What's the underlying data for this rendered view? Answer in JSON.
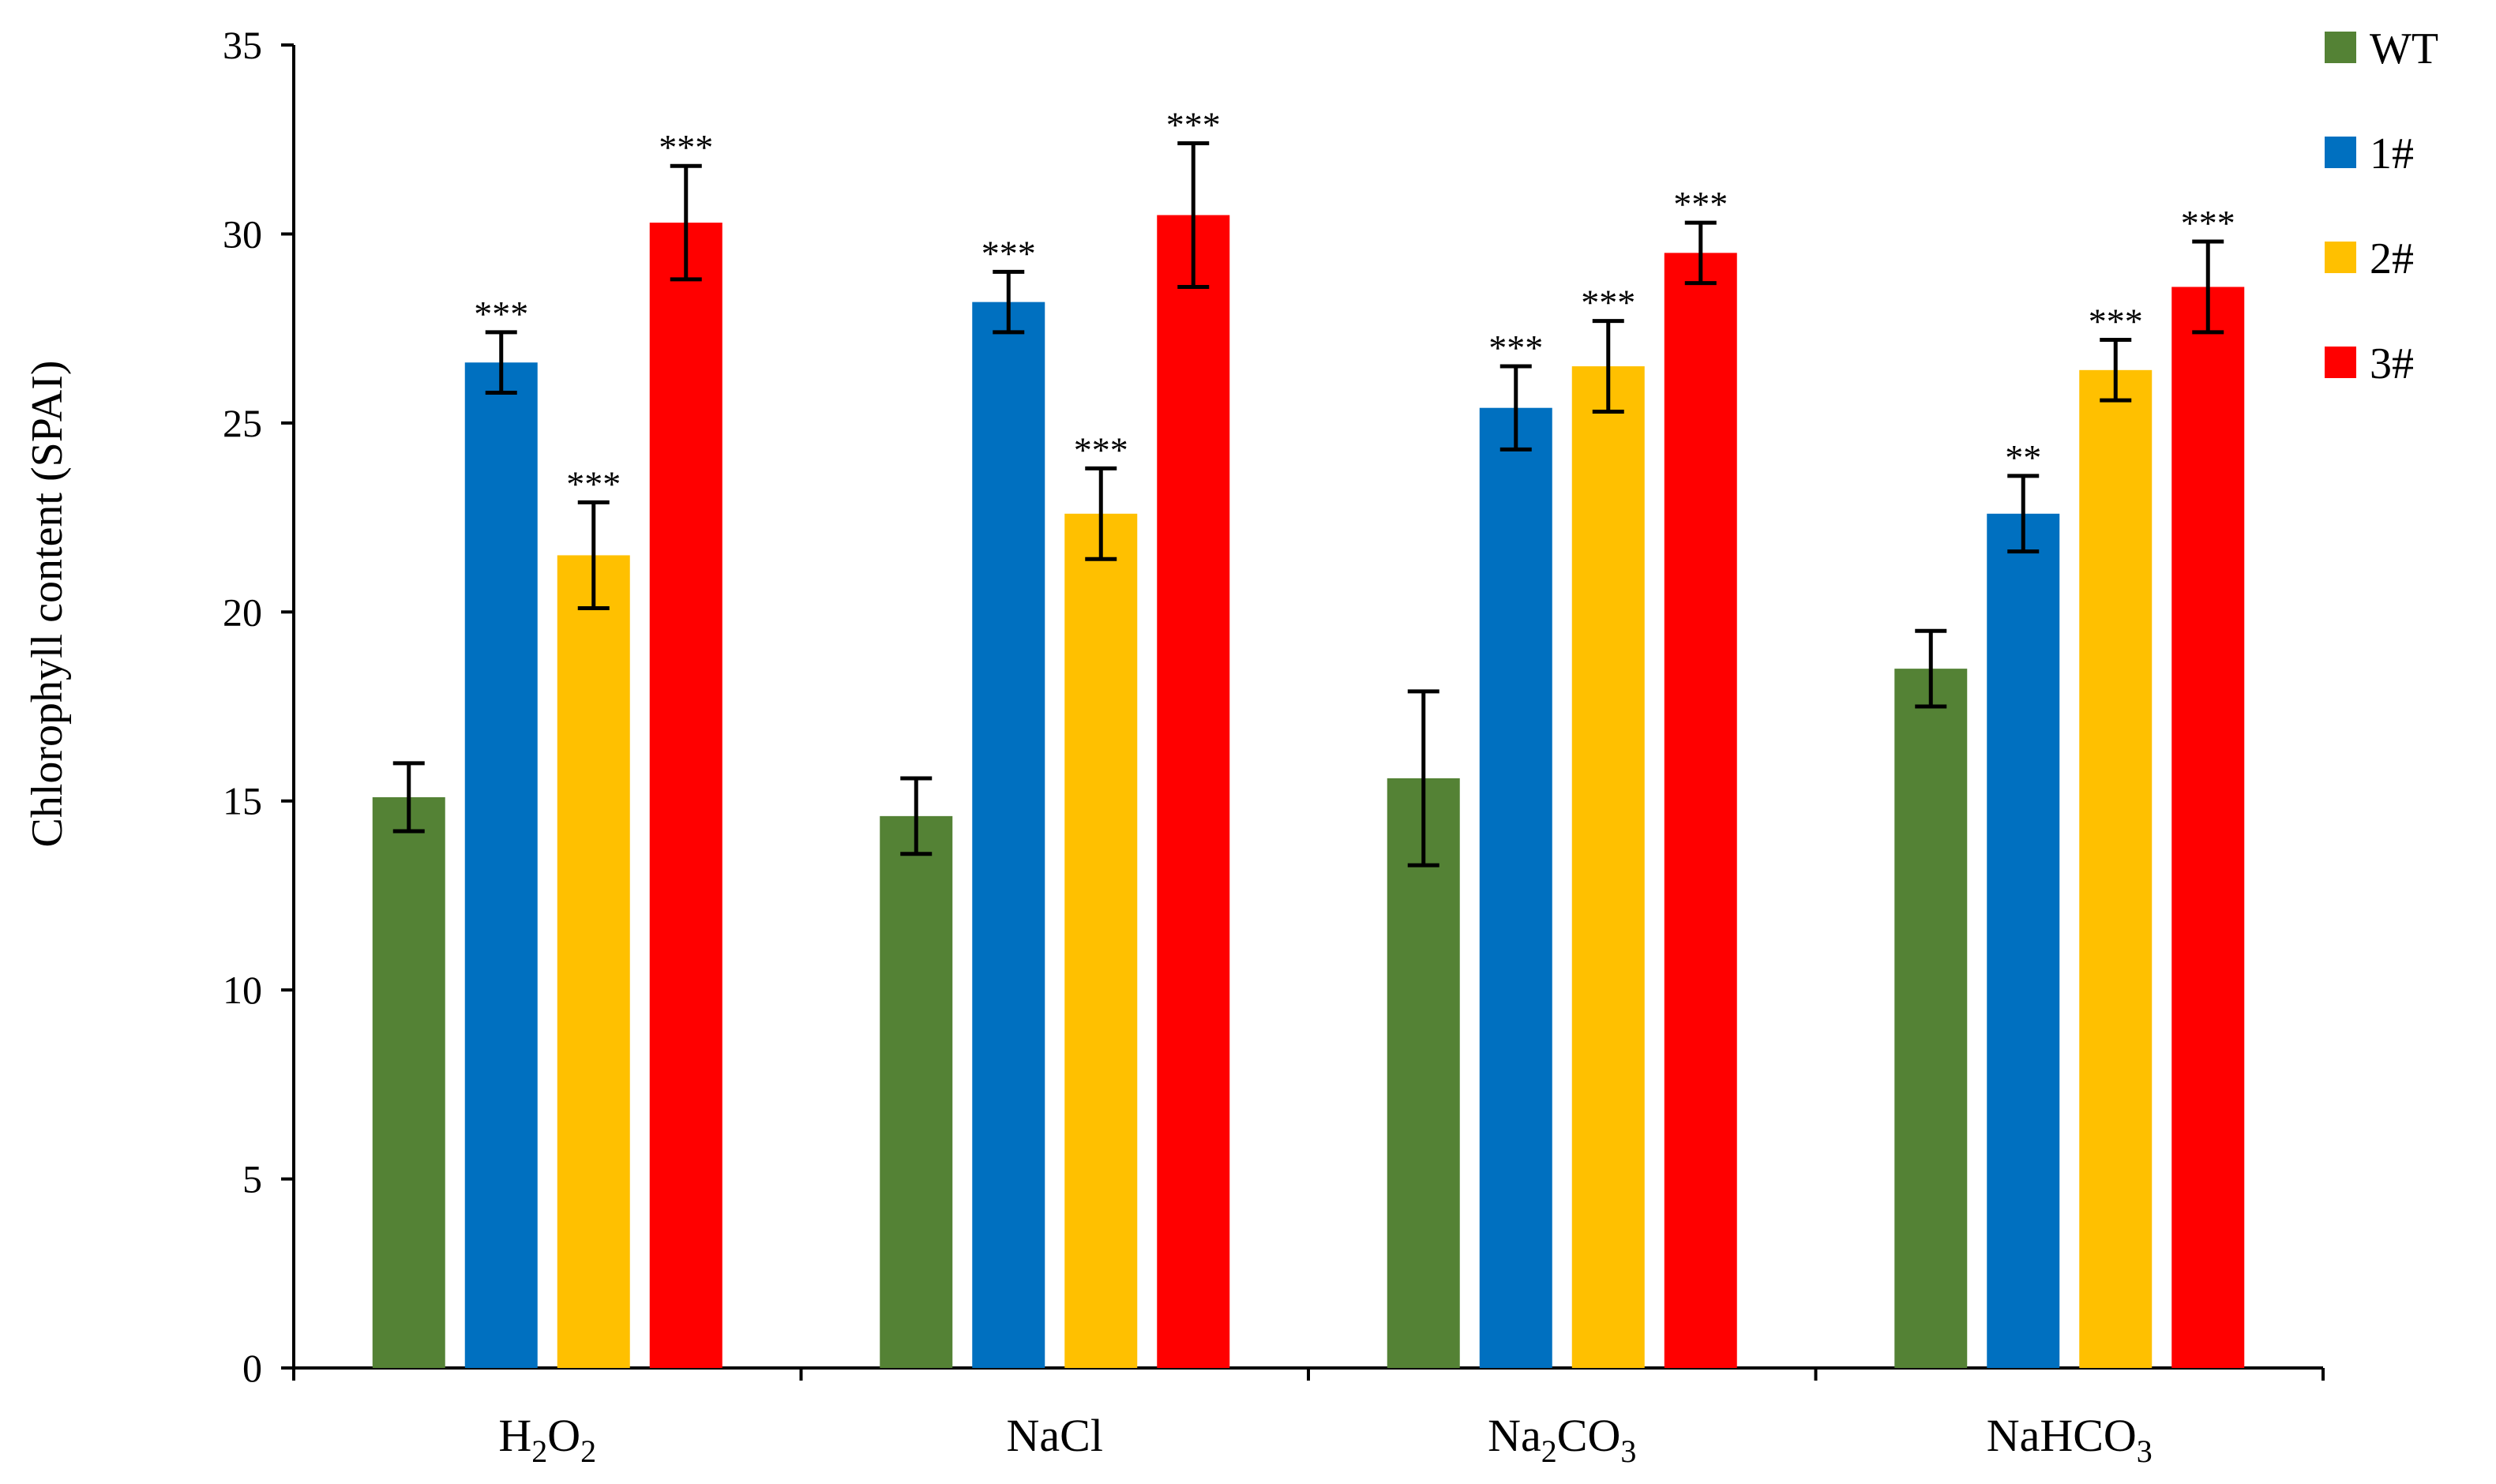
{
  "chart_data": {
    "type": "bar",
    "title": "",
    "xlabel": "",
    "ylabel": "Chlorophyll content (SPAI)",
    "ylim": [
      0,
      35
    ],
    "yticks": [
      0,
      5,
      10,
      15,
      20,
      25,
      30,
      35
    ],
    "categories": [
      {
        "label": "H2O2",
        "parts": [
          [
            "H",
            false
          ],
          [
            "2",
            true
          ],
          [
            "O",
            false
          ],
          [
            "2",
            true
          ]
        ]
      },
      {
        "label": "NaCl",
        "parts": [
          [
            "NaCl",
            false
          ]
        ]
      },
      {
        "label": "Na2CO3",
        "parts": [
          [
            "Na",
            false
          ],
          [
            "2",
            true
          ],
          [
            "CO",
            false
          ],
          [
            "3",
            true
          ]
        ]
      },
      {
        "label": "NaHCO3",
        "parts": [
          [
            "NaHCO",
            false
          ],
          [
            "3",
            true
          ]
        ]
      }
    ],
    "series": [
      {
        "name": "WT",
        "color": "#548235",
        "values": [
          15.1,
          14.6,
          15.6,
          18.5
        ],
        "errors": [
          0.9,
          1.0,
          2.3,
          1.0
        ],
        "significance": [
          "",
          "",
          "",
          ""
        ]
      },
      {
        "name": "1#",
        "color": "#0070C0",
        "values": [
          26.6,
          28.2,
          25.4,
          22.6
        ],
        "errors": [
          0.8,
          0.8,
          1.1,
          1.0
        ],
        "significance": [
          "***",
          "***",
          "***",
          "**"
        ]
      },
      {
        "name": "2#",
        "color": "#FFC000",
        "values": [
          21.5,
          22.6,
          26.5,
          26.4
        ],
        "errors": [
          1.4,
          1.2,
          1.2,
          0.8
        ],
        "significance": [
          "***",
          "***",
          "***",
          "***"
        ]
      },
      {
        "name": "3#",
        "color": "#FF0000",
        "values": [
          30.3,
          30.5,
          29.5,
          28.6
        ],
        "errors": [
          1.5,
          1.9,
          0.8,
          1.2
        ],
        "significance": [
          "***",
          "***",
          "***",
          "***"
        ]
      }
    ],
    "legend_position": "top-right",
    "grid": false
  }
}
